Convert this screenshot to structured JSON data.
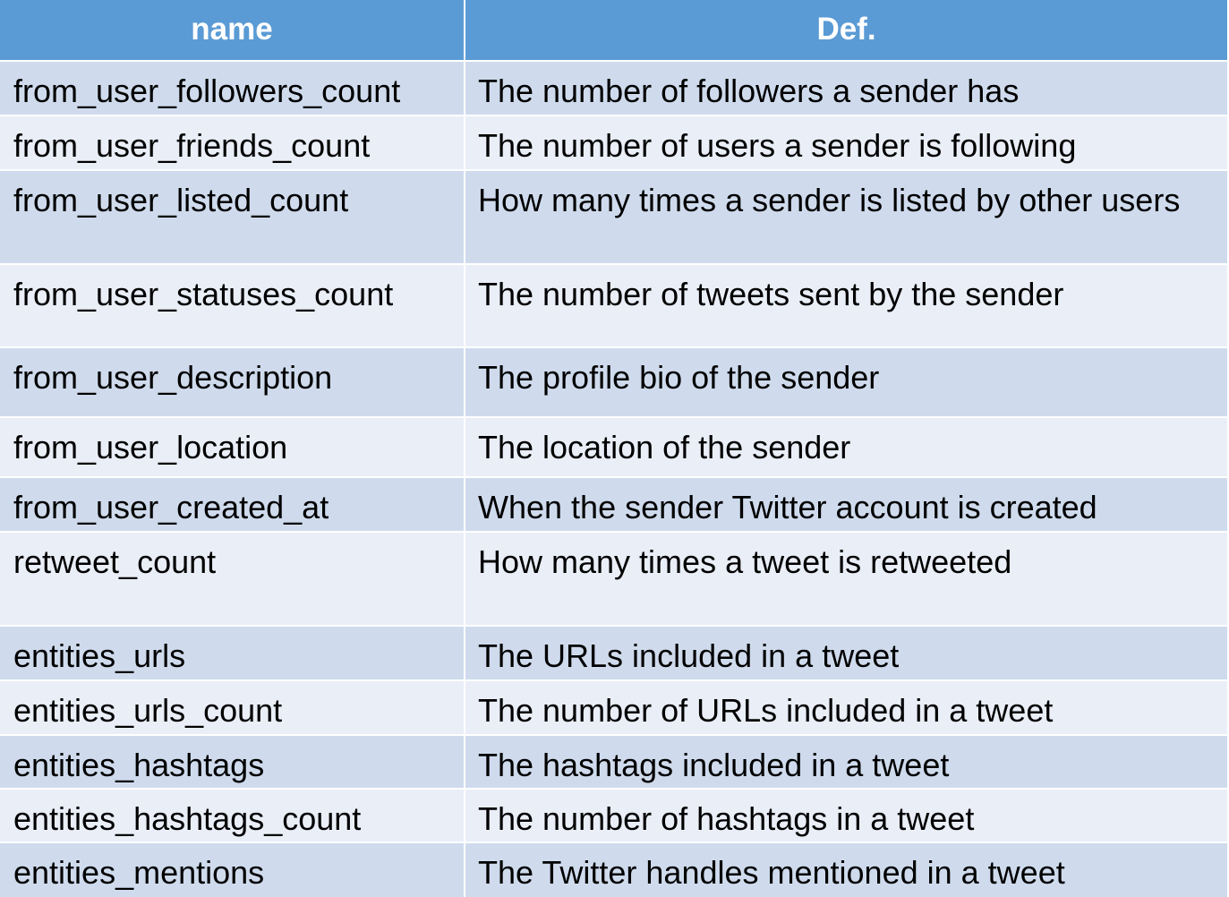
{
  "table": {
    "headers": {
      "name": "name",
      "def": "Def."
    },
    "rows": [
      {
        "name": "from_user_followers_count",
        "def": "The number of followers a sender has"
      },
      {
        "name": "from_user_friends_count",
        "def": "The number of users a sender is following"
      },
      {
        "name": "from_user_listed_count",
        "def": "How many times a sender is listed by other users"
      },
      {
        "name": "from_user_statuses_count",
        "def": "The number of tweets sent by the sender"
      },
      {
        "name": "from_user_description",
        "def": "The profile bio of the sender"
      },
      {
        "name": "from_user_location",
        "def": "The location of the sender"
      },
      {
        "name": "from_user_created_at",
        "def": "When the sender Twitter account is created"
      },
      {
        "name": "retweet_count",
        "def": "How many times a tweet is retweeted"
      },
      {
        "name": "entities_urls",
        "def": "The URLs included in a tweet"
      },
      {
        "name": "entities_urls_count",
        "def": "The number of URLs included in a tweet"
      },
      {
        "name": "entities_hashtags",
        "def": "The hashtags included in a tweet"
      },
      {
        "name": "entities_hashtags_count",
        "def": "The number of hashtags in a tweet"
      },
      {
        "name": "entities_mentions",
        "def": "The Twitter handles mentioned in a tweet"
      }
    ]
  },
  "colors": {
    "header_bg": "#5b9bd5",
    "row_dark": "#cfdbed",
    "row_light": "#e9eef7"
  }
}
